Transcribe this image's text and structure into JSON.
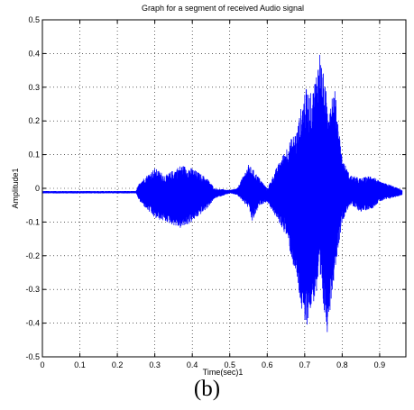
{
  "chart_data": {
    "type": "line",
    "title": "Graph for a segment of received Audio signal",
    "xlabel": "Time(sec)1",
    "ylabel": "Amplitude1",
    "xlim": [
      0,
      0.97
    ],
    "ylim": [
      -0.5,
      0.5
    ],
    "xticks": [
      "0",
      "0.1",
      "0.2",
      "0.3",
      "0.4",
      "0.5",
      "0.6",
      "0.7",
      "0.8",
      "0.9"
    ],
    "yticks": [
      "0.5",
      "0.4",
      "0.3",
      "0.2",
      "0.1",
      "0",
      "-0.1",
      "-0.2",
      "-0.3",
      "-0.4",
      "-0.5"
    ],
    "grid": true,
    "line_color": "#0000ff",
    "envelope": {
      "time": [
        0.0,
        0.25,
        0.26,
        0.3,
        0.33,
        0.37,
        0.4,
        0.44,
        0.46,
        0.5,
        0.52,
        0.55,
        0.56,
        0.58,
        0.6,
        0.62,
        0.65,
        0.68,
        0.7,
        0.72,
        0.74,
        0.76,
        0.78,
        0.8,
        0.82,
        0.85,
        0.88,
        0.9,
        0.93,
        0.96
      ],
      "max": [
        -0.008,
        -0.008,
        0.02,
        0.06,
        0.04,
        0.07,
        0.06,
        0.03,
        0.0,
        -0.005,
        0.0,
        0.07,
        0.06,
        0.03,
        0.0,
        0.05,
        0.12,
        0.18,
        0.3,
        0.28,
        0.41,
        0.27,
        0.3,
        0.09,
        0.04,
        0.03,
        0.04,
        0.02,
        0.01,
        -0.005
      ],
      "min": [
        -0.015,
        -0.015,
        -0.04,
        -0.09,
        -0.1,
        -0.12,
        -0.1,
        -0.06,
        -0.03,
        -0.015,
        -0.02,
        -0.06,
        -0.1,
        -0.05,
        -0.04,
        -0.08,
        -0.14,
        -0.28,
        -0.43,
        -0.35,
        -0.3,
        -0.43,
        -0.25,
        -0.1,
        -0.05,
        -0.07,
        -0.06,
        -0.04,
        -0.03,
        -0.02
      ]
    }
  },
  "caption": "(b)"
}
